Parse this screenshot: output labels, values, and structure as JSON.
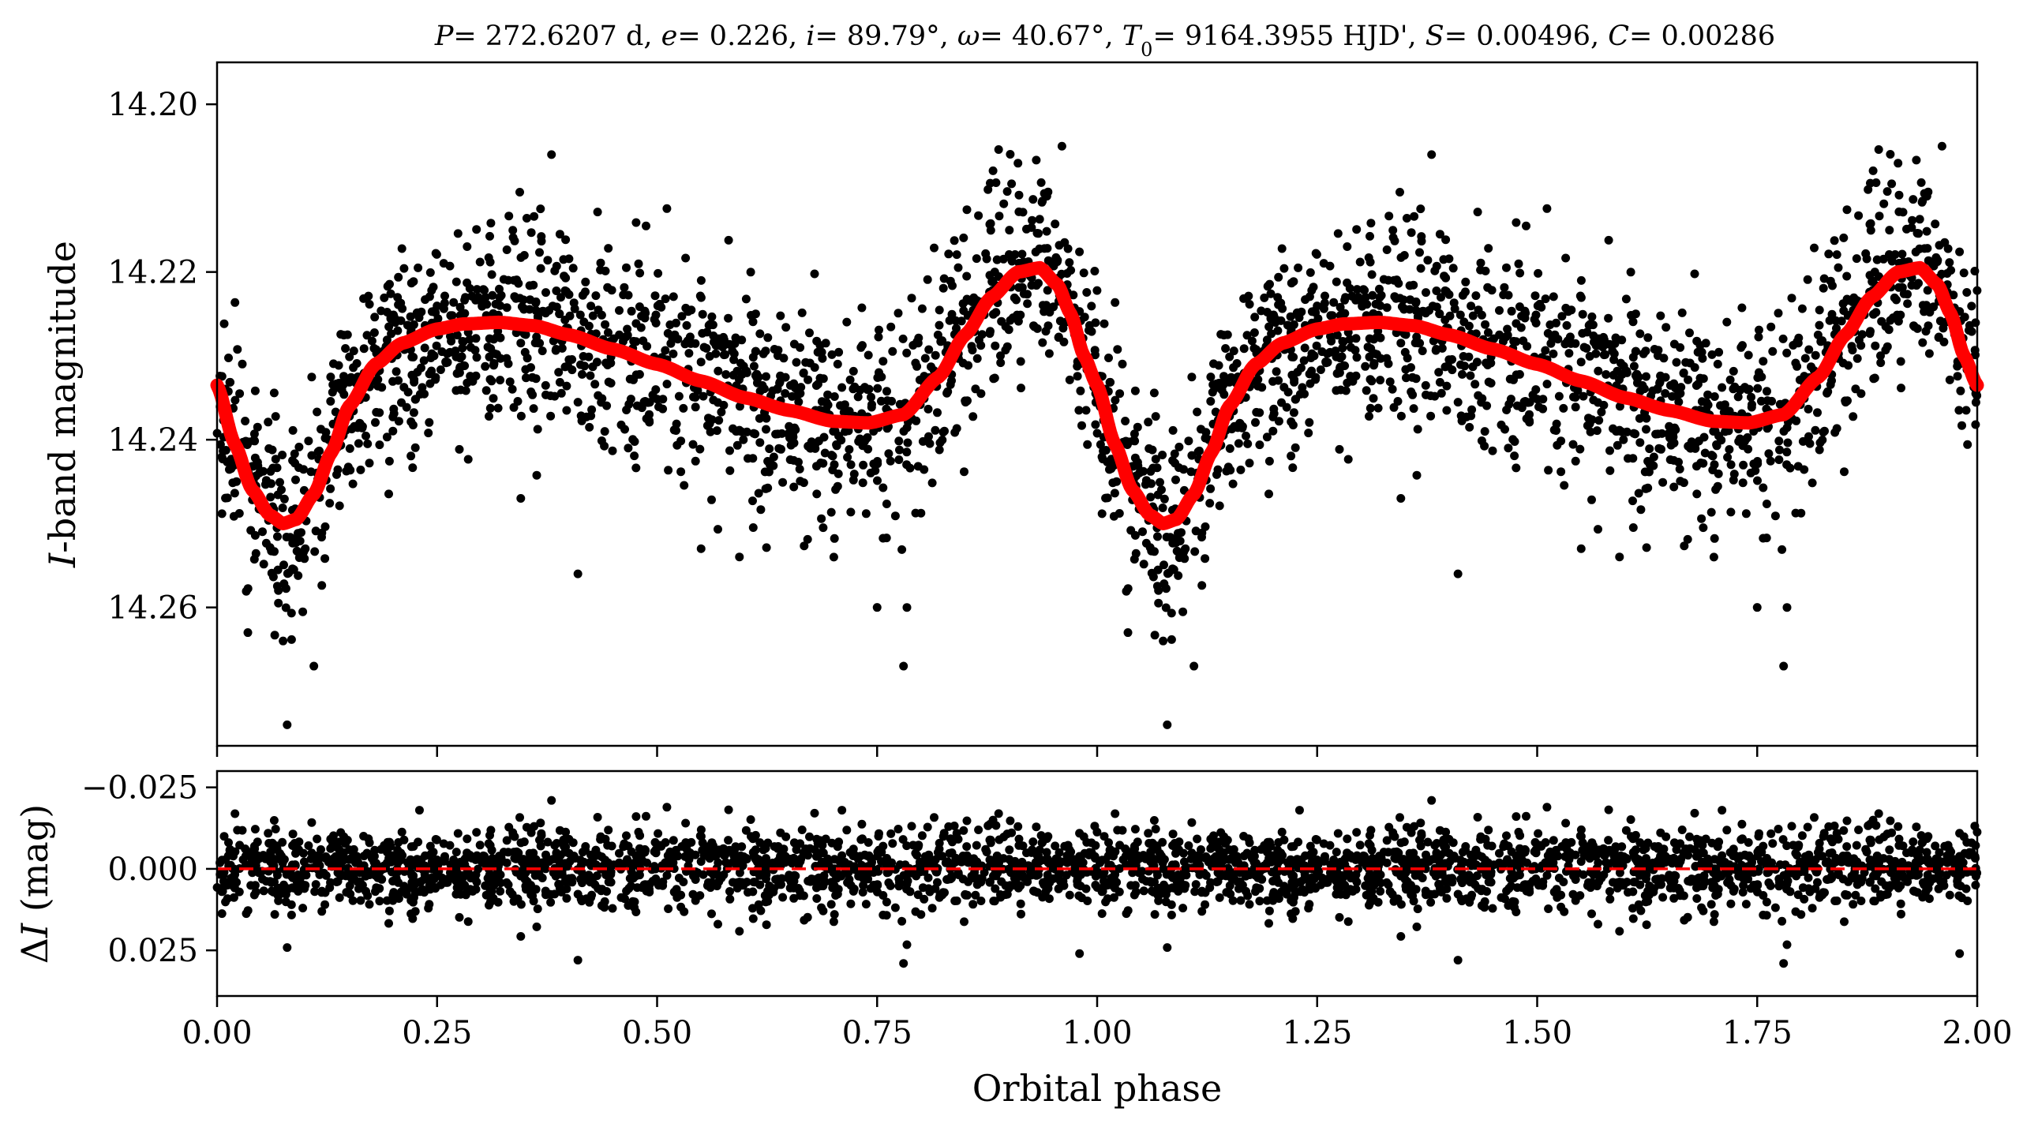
{
  "chart_data": [
    {
      "type": "scatter",
      "panel": "light-curve",
      "title": {
        "P": "P",
        "P_val": "= 272.6207 d, ",
        "e": "e",
        "e_val": "= 0.226, ",
        "i": "i",
        "i_val": "= 89.79°, ",
        "omega": "ω",
        "omega_val": "= 40.67°, ",
        "T": "T",
        "T_sub": "0",
        "T_val": "= 9164.3955 HJD', ",
        "S": "S",
        "S_val": "= 0.00496, ",
        "C": "C",
        "C_val": "= 0.00286"
      },
      "ylabel": "I",
      "ylabel_rest": "-band magnitude",
      "ylim": [
        14.2765,
        14.195
      ],
      "y_inverted": true,
      "yticks": [
        14.2,
        14.22,
        14.24,
        14.26
      ],
      "ytick_labels": [
        "14.20",
        "14.22",
        "14.24",
        "14.26"
      ],
      "xlim": [
        0,
        2
      ],
      "data_color": "#000000",
      "model_color": "#ff0000",
      "model_series": {
        "name": "",
        "x": [
          0.0,
          0.02,
          0.04,
          0.06,
          0.075,
          0.09,
          0.11,
          0.13,
          0.15,
          0.18,
          0.21,
          0.25,
          0.28,
          0.32,
          0.36,
          0.4,
          0.45,
          0.5,
          0.55,
          0.6,
          0.65,
          0.7,
          0.74,
          0.78,
          0.82,
          0.85,
          0.88,
          0.91,
          0.935,
          0.955,
          0.97,
          0.985,
          1.0
        ],
        "y": [
          14.2335,
          14.2405,
          14.246,
          14.249,
          14.25,
          14.2495,
          14.2465,
          14.2415,
          14.236,
          14.231,
          14.2285,
          14.2268,
          14.2262,
          14.226,
          14.2264,
          14.2275,
          14.2292,
          14.231,
          14.233,
          14.235,
          14.2365,
          14.2378,
          14.238,
          14.237,
          14.2325,
          14.2275,
          14.223,
          14.22,
          14.2195,
          14.2215,
          14.225,
          14.23,
          14.2335
        ]
      },
      "observations": {
        "note": "thousands of phase-folded photometric points; distribution summarised by model + scatter",
        "scatter_sigma_mag": 0.006,
        "outliers": [
          {
            "x": 0.11,
            "y": 14.267
          },
          {
            "x": 0.41,
            "y": 14.256
          },
          {
            "x": 0.78,
            "y": 14.267
          },
          {
            "x": 0.38,
            "y": 14.206
          },
          {
            "x": 0.96,
            "y": 14.205
          },
          {
            "x": 0.035,
            "y": 14.263
          },
          {
            "x": 0.075,
            "y": 14.264
          },
          {
            "x": 0.55,
            "y": 14.253
          },
          {
            "x": 0.75,
            "y": 14.26
          }
        ]
      }
    },
    {
      "type": "scatter",
      "panel": "residuals",
      "ylabel_prefix": "Δ",
      "ylabel_var": "I",
      "ylabel_suffix": " (mag)",
      "xlabel": "Orbital phase",
      "xlim": [
        0,
        2
      ],
      "ylim": [
        0.039,
        -0.03
      ],
      "y_inverted": true,
      "yticks": [
        -0.025,
        0.0,
        0.025
      ],
      "ytick_labels": [
        "−0.025",
        "0.000",
        "0.025"
      ],
      "xticks": [
        0,
        0.25,
        0.5,
        0.75,
        1.0,
        1.25,
        1.5,
        1.75,
        2.0
      ],
      "xtick_labels": [
        "0.00",
        "0.25",
        "0.50",
        "0.75",
        "1.00",
        "1.25",
        "1.50",
        "1.75",
        "2.00"
      ],
      "zero_line": 0,
      "zero_line_color": "#ff0000",
      "scatter_sigma_mag": 0.006,
      "outliers": [
        {
          "x": 0.41,
          "y": 0.028
        },
        {
          "x": 0.78,
          "y": 0.029
        },
        {
          "x": 0.38,
          "y": -0.021
        },
        {
          "x": 0.23,
          "y": -0.018
        },
        {
          "x": 0.71,
          "y": -0.018
        },
        {
          "x": 0.98,
          "y": 0.026
        }
      ]
    }
  ]
}
